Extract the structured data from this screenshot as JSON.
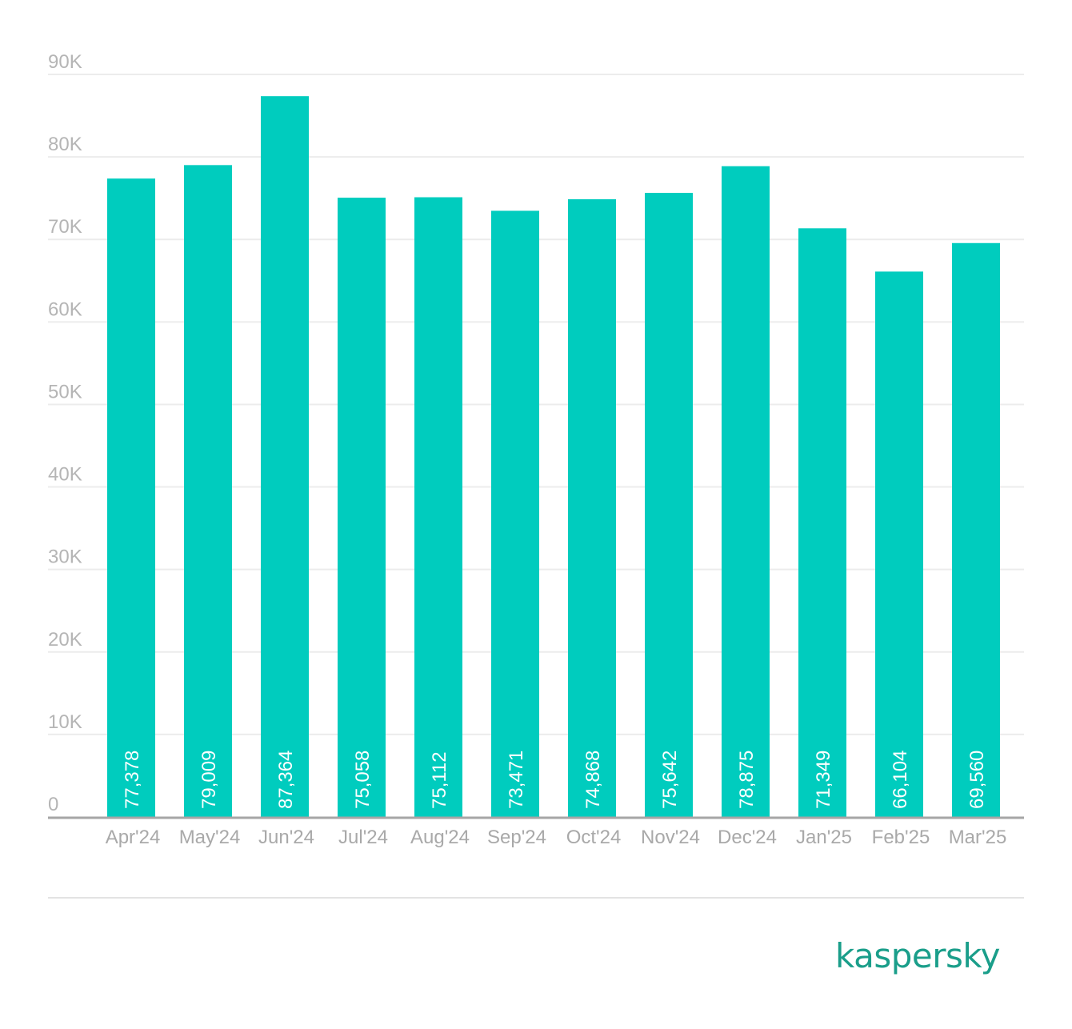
{
  "chart_data": {
    "type": "bar",
    "title": "",
    "xlabel": "",
    "ylabel": "",
    "categories": [
      "Apr'24",
      "May'24",
      "Jun'24",
      "Jul'24",
      "Aug'24",
      "Sep'24",
      "Oct'24",
      "Nov'24",
      "Dec'24",
      "Jan'25",
      "Feb'25",
      "Mar'25"
    ],
    "values": [
      77378,
      79009,
      87364,
      75058,
      75112,
      73471,
      74868,
      75642,
      78875,
      71349,
      66104,
      69560
    ],
    "value_labels": [
      "77,378",
      "79,009",
      "87,364",
      "75,058",
      "75,112",
      "73,471",
      "74,868",
      "75,642",
      "78,875",
      "71,349",
      "66,104",
      "69,560"
    ],
    "ylim": [
      0,
      90000
    ],
    "yticks": [
      0,
      10000,
      20000,
      30000,
      40000,
      50000,
      60000,
      70000,
      80000,
      90000
    ],
    "ytick_labels": [
      "0",
      "10K",
      "20K",
      "30K",
      "40K",
      "50K",
      "60K",
      "70K",
      "80K",
      "90K"
    ],
    "grid": true,
    "legend": "none",
    "colors": {
      "bar": "#00ccbe",
      "grid": "#ececec",
      "baseline": "#a6a6a6",
      "divider": "#e3e3e3"
    }
  },
  "brand": {
    "logo_text": "kaspersky",
    "color": "#1a9e8a"
  }
}
